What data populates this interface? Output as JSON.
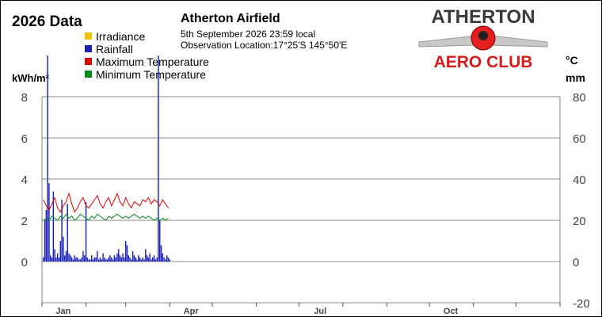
{
  "header": {
    "data_title": "2026 Data",
    "station_name": "Atherton Airfield",
    "datetime": "5th September 2026  23:59 local",
    "location": "Observation Location:17°25'S 145°50'E"
  },
  "logo": {
    "line1": "ATHERTON",
    "line2": "AERO CLUB",
    "colors": {
      "text_dark": "#3a3a3a",
      "text_red": "#d81a1a",
      "wing": "#bfbfbf"
    }
  },
  "chart_data": {
    "type": "bar+line",
    "title": "2026 Data",
    "legend": [
      {
        "name": "Irradiance",
        "color": "#f2c300"
      },
      {
        "name": "Rainfall",
        "color": "#1c22b8"
      },
      {
        "name": "Maximum Temperature",
        "color": "#e00000"
      },
      {
        "name": "Minimum Temperature",
        "color": "#008c1e"
      }
    ],
    "legend_placement": "top-left",
    "grid": true,
    "x_axis": {
      "type": "date",
      "range": [
        "2026-01-01",
        "2026-12-31"
      ],
      "ticks": [
        {
          "label": "Jan",
          "day": 15
        },
        {
          "label": "Apr",
          "day": 105
        },
        {
          "label": "Jul",
          "day": 196
        },
        {
          "label": "Oct",
          "day": 288
        }
      ],
      "month_starts": [
        0,
        31,
        59,
        90,
        120,
        151,
        181,
        212,
        243,
        273,
        304,
        334,
        365
      ]
    },
    "y_left": {
      "label": "kWh/m²",
      "range": [
        0,
        8
      ],
      "ticks": [
        0,
        2,
        4,
        6,
        8
      ]
    },
    "y_right": {
      "labels": [
        "°C",
        "mm"
      ],
      "range": [
        -20,
        80
      ],
      "ticks": [
        -20,
        0,
        20,
        40,
        60,
        80
      ]
    },
    "series": {
      "rainfall_mm": [
        [
          1,
          2
        ],
        [
          2,
          20
        ],
        [
          3,
          25
        ],
        [
          4,
          100
        ],
        [
          5,
          38
        ],
        [
          6,
          3
        ],
        [
          7,
          2
        ],
        [
          8,
          34
        ],
        [
          9,
          6
        ],
        [
          10,
          2
        ],
        [
          11,
          4
        ],
        [
          12,
          2
        ],
        [
          13,
          10
        ],
        [
          14,
          30
        ],
        [
          15,
          12
        ],
        [
          16,
          3
        ],
        [
          17,
          5
        ],
        [
          18,
          28
        ],
        [
          19,
          4
        ],
        [
          20,
          3
        ],
        [
          21,
          2
        ],
        [
          22,
          1
        ],
        [
          23,
          3
        ],
        [
          24,
          2
        ],
        [
          25,
          2
        ],
        [
          26,
          1
        ],
        [
          27,
          1
        ],
        [
          28,
          2
        ],
        [
          29,
          5
        ],
        [
          30,
          3
        ],
        [
          31,
          29
        ],
        [
          32,
          2
        ],
        [
          33,
          1
        ],
        [
          34,
          1
        ],
        [
          35,
          3
        ],
        [
          36,
          1
        ],
        [
          37,
          2
        ],
        [
          38,
          2
        ],
        [
          39,
          5
        ],
        [
          40,
          1
        ],
        [
          41,
          2
        ],
        [
          42,
          1
        ],
        [
          43,
          4
        ],
        [
          44,
          2
        ],
        [
          45,
          1
        ],
        [
          46,
          1
        ],
        [
          47,
          2
        ],
        [
          48,
          3
        ],
        [
          49,
          2
        ],
        [
          50,
          1
        ],
        [
          51,
          3
        ],
        [
          52,
          2
        ],
        [
          53,
          4
        ],
        [
          54,
          6
        ],
        [
          55,
          3
        ],
        [
          56,
          2
        ],
        [
          57,
          4
        ],
        [
          58,
          2
        ],
        [
          59,
          10
        ],
        [
          60,
          8
        ],
        [
          61,
          3
        ],
        [
          62,
          2
        ],
        [
          63,
          1
        ],
        [
          64,
          5
        ],
        [
          65,
          3
        ],
        [
          66,
          2
        ],
        [
          67,
          1
        ],
        [
          68,
          3
        ],
        [
          69,
          2
        ],
        [
          70,
          1
        ],
        [
          71,
          2
        ],
        [
          72,
          1
        ],
        [
          73,
          6
        ],
        [
          74,
          3
        ],
        [
          75,
          2
        ],
        [
          76,
          4
        ],
        [
          77,
          1
        ],
        [
          78,
          2
        ],
        [
          79,
          3
        ],
        [
          80,
          1
        ],
        [
          81,
          2
        ],
        [
          82,
          100
        ],
        [
          83,
          20
        ],
        [
          84,
          8
        ],
        [
          85,
          4
        ],
        [
          86,
          2
        ],
        [
          87,
          1
        ],
        [
          88,
          3
        ],
        [
          89,
          2
        ],
        [
          90,
          1
        ]
      ],
      "irradiance_kwh": [],
      "max_temp_c": [
        [
          1,
          30
        ],
        [
          3,
          27
        ],
        [
          5,
          25
        ],
        [
          7,
          28
        ],
        [
          9,
          31
        ],
        [
          11,
          26
        ],
        [
          13,
          24
        ],
        [
          15,
          27
        ],
        [
          17,
          29
        ],
        [
          19,
          33
        ],
        [
          21,
          28
        ],
        [
          23,
          24
        ],
        [
          25,
          26
        ],
        [
          27,
          29
        ],
        [
          29,
          31
        ],
        [
          31,
          27
        ],
        [
          33,
          26
        ],
        [
          35,
          28
        ],
        [
          37,
          30
        ],
        [
          39,
          32
        ],
        [
          41,
          28
        ],
        [
          43,
          26
        ],
        [
          45,
          29
        ],
        [
          47,
          31
        ],
        [
          49,
          27
        ],
        [
          51,
          30
        ],
        [
          53,
          33
        ],
        [
          55,
          29
        ],
        [
          57,
          27
        ],
        [
          59,
          31
        ],
        [
          61,
          28
        ],
        [
          63,
          26
        ],
        [
          65,
          29
        ],
        [
          67,
          28
        ],
        [
          69,
          27
        ],
        [
          71,
          30
        ],
        [
          73,
          29
        ],
        [
          75,
          31
        ],
        [
          77,
          28
        ],
        [
          79,
          30
        ],
        [
          81,
          29
        ],
        [
          83,
          27
        ],
        [
          85,
          30
        ],
        [
          87,
          28
        ],
        [
          89,
          26
        ]
      ],
      "min_temp_c": [
        [
          1,
          20
        ],
        [
          3,
          21
        ],
        [
          5,
          20
        ],
        [
          7,
          22
        ],
        [
          9,
          21
        ],
        [
          11,
          20
        ],
        [
          13,
          22
        ],
        [
          15,
          21
        ],
        [
          17,
          23
        ],
        [
          19,
          21
        ],
        [
          21,
          22
        ],
        [
          23,
          20
        ],
        [
          25,
          21
        ],
        [
          27,
          23
        ],
        [
          29,
          22
        ],
        [
          31,
          21
        ],
        [
          33,
          20
        ],
        [
          35,
          22
        ],
        [
          37,
          21
        ],
        [
          39,
          23
        ],
        [
          41,
          22
        ],
        [
          43,
          21
        ],
        [
          45,
          20
        ],
        [
          47,
          22
        ],
        [
          49,
          21
        ],
        [
          51,
          22
        ],
        [
          53,
          23
        ],
        [
          55,
          22
        ],
        [
          57,
          21
        ],
        [
          59,
          22
        ],
        [
          61,
          21
        ],
        [
          63,
          22
        ],
        [
          65,
          23
        ],
        [
          67,
          22
        ],
        [
          69,
          21
        ],
        [
          71,
          22
        ],
        [
          73,
          21
        ],
        [
          75,
          22
        ],
        [
          77,
          21
        ],
        [
          79,
          20
        ],
        [
          81,
          21
        ],
        [
          83,
          20
        ],
        [
          85,
          21
        ],
        [
          87,
          20
        ],
        [
          89,
          21
        ]
      ]
    }
  }
}
